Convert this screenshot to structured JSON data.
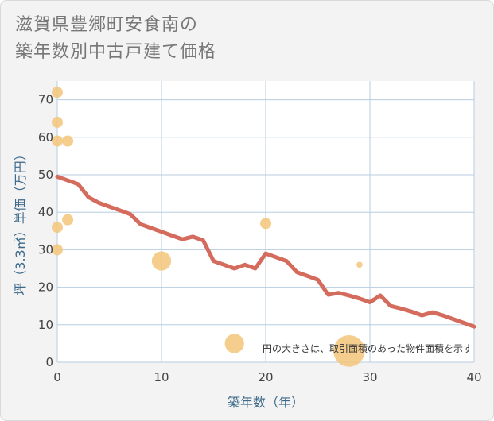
{
  "title_lines": [
    "滋賀県豊郷町安食南の",
    "築年数別中古戸建て価格"
  ],
  "chart_data": {
    "type": "scatter",
    "title": "滋賀県豊郷町安食南の築年数別中古戸建て価格",
    "xlabel": "築年数（年）",
    "ylabel": "坪（3.3㎡）単価（万円）",
    "xlim": [
      0,
      40
    ],
    "ylim": [
      0,
      75
    ],
    "x_ticks": [
      0,
      10,
      20,
      30,
      40
    ],
    "y_ticks": [
      0,
      10,
      20,
      30,
      40,
      50,
      60,
      70
    ],
    "grid": true,
    "note": "円の大きさは、取引面積のあった物件面積を示す",
    "points": [
      {
        "x": 0,
        "y": 72,
        "size": 1
      },
      {
        "x": 0,
        "y": 64,
        "size": 1
      },
      {
        "x": 0,
        "y": 59,
        "size": 1
      },
      {
        "x": 1,
        "y": 59,
        "size": 1
      },
      {
        "x": 0,
        "y": 36,
        "size": 1
      },
      {
        "x": 1,
        "y": 38,
        "size": 1
      },
      {
        "x": 0,
        "y": 30,
        "size": 1
      },
      {
        "x": 10,
        "y": 27,
        "size": 3
      },
      {
        "x": 20,
        "y": 37,
        "size": 1
      },
      {
        "x": 29,
        "y": 26,
        "size": 0.3
      },
      {
        "x": 17,
        "y": 5,
        "size": 3
      },
      {
        "x": 28,
        "y": 3,
        "size": 8
      }
    ],
    "trend": {
      "x": [
        0,
        2,
        3,
        4,
        5,
        6,
        7,
        8,
        9,
        10,
        11,
        12,
        13,
        14,
        15,
        16,
        17,
        18,
        19,
        20,
        21,
        22,
        23,
        24,
        25,
        26,
        27,
        28,
        29,
        30,
        31,
        32,
        33,
        34,
        35,
        36,
        37,
        38,
        39,
        40
      ],
      "y": [
        49.5,
        47.5,
        44,
        42.5,
        41.5,
        40.5,
        39.5,
        36.8,
        35.8,
        34.8,
        33.8,
        32.8,
        33.5,
        32.5,
        27,
        26,
        25,
        26,
        25,
        29,
        28,
        27,
        24,
        23,
        22,
        18,
        18.5,
        17.8,
        17,
        16,
        17.8,
        15,
        14.3,
        13.5,
        12.5,
        13.3,
        12.5,
        11.5,
        10.5,
        9.5
      ]
    },
    "colors": {
      "bubble": "#f3c67a",
      "trend": "#d46b5c",
      "grid": "#b7cde0",
      "plot_bg": "#ffffff"
    }
  }
}
